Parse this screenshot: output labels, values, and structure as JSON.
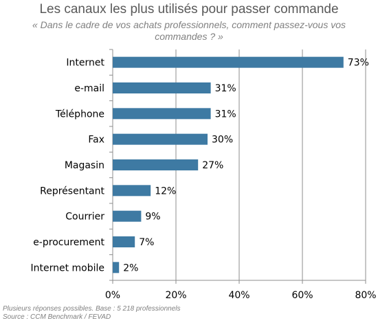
{
  "chart_data": {
    "type": "bar",
    "orientation": "horizontal",
    "title": "Les canaux les plus utilisés pour passer commande",
    "subtitle": "« Dans le cadre de vos achats professionnels, comment passez-vous vos commandes ? »",
    "categories": [
      "Internet",
      "e-mail",
      "Téléphone",
      "Fax",
      "Magasin",
      "Représentant",
      "Courrier",
      "e-procurement",
      "Internet mobile"
    ],
    "values": [
      73,
      31,
      31,
      30,
      27,
      12,
      9,
      7,
      2
    ],
    "data_labels": [
      "73%",
      "31%",
      "31%",
      "30%",
      "27%",
      "12%",
      "9%",
      "7%",
      "2%"
    ],
    "xlim": [
      0,
      80
    ],
    "xticks": [
      0,
      20,
      40,
      60,
      80
    ],
    "xtick_labels": [
      "0%",
      "20%",
      "40%",
      "60%",
      "80%"
    ],
    "grid": true,
    "bar_color": "#3e7aa3",
    "grid_color": "#8c8c8c"
  },
  "footnotes": {
    "base": "Plusieurs réponses possibles. Base  : 5 218 professionnels",
    "source": "Source : CCM Benchmark / FEVAD"
  }
}
